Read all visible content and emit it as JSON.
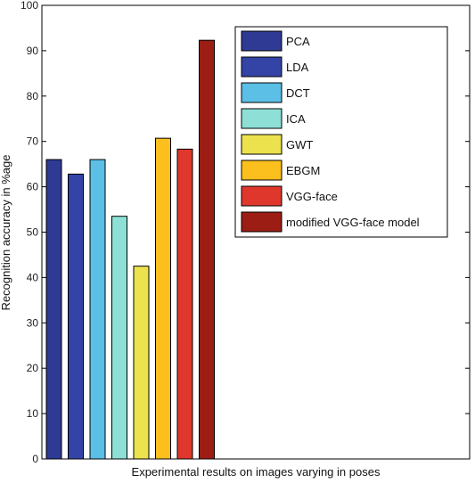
{
  "chart_data": {
    "type": "bar",
    "title": "",
    "xlabel": "Experimental results on images varying in poses",
    "ylabel": "Recognition accuracy in %age",
    "ylim": [
      0,
      100
    ],
    "yticks": [
      0,
      10,
      20,
      30,
      40,
      50,
      60,
      70,
      80,
      90,
      100
    ],
    "grid": false,
    "legend_position": "top-right",
    "series": [
      {
        "name": "PCA",
        "value": 66,
        "color": "#2e3a94"
      },
      {
        "name": "LDA",
        "value": 62.8,
        "color": "#3344a6"
      },
      {
        "name": "DCT",
        "value": 66,
        "color": "#5bbfe6"
      },
      {
        "name": "ICA",
        "value": 53.5,
        "color": "#8ee0d6"
      },
      {
        "name": "GWT",
        "value": 42.5,
        "color": "#ebe24e"
      },
      {
        "name": "EBGM",
        "value": 70.7,
        "color": "#fbbf1e"
      },
      {
        "name": "VGG-face",
        "value": 68.3,
        "color": "#e0372c"
      },
      {
        "name": "modified VGG-face model",
        "value": 92.3,
        "color": "#9c1d14"
      }
    ]
  }
}
